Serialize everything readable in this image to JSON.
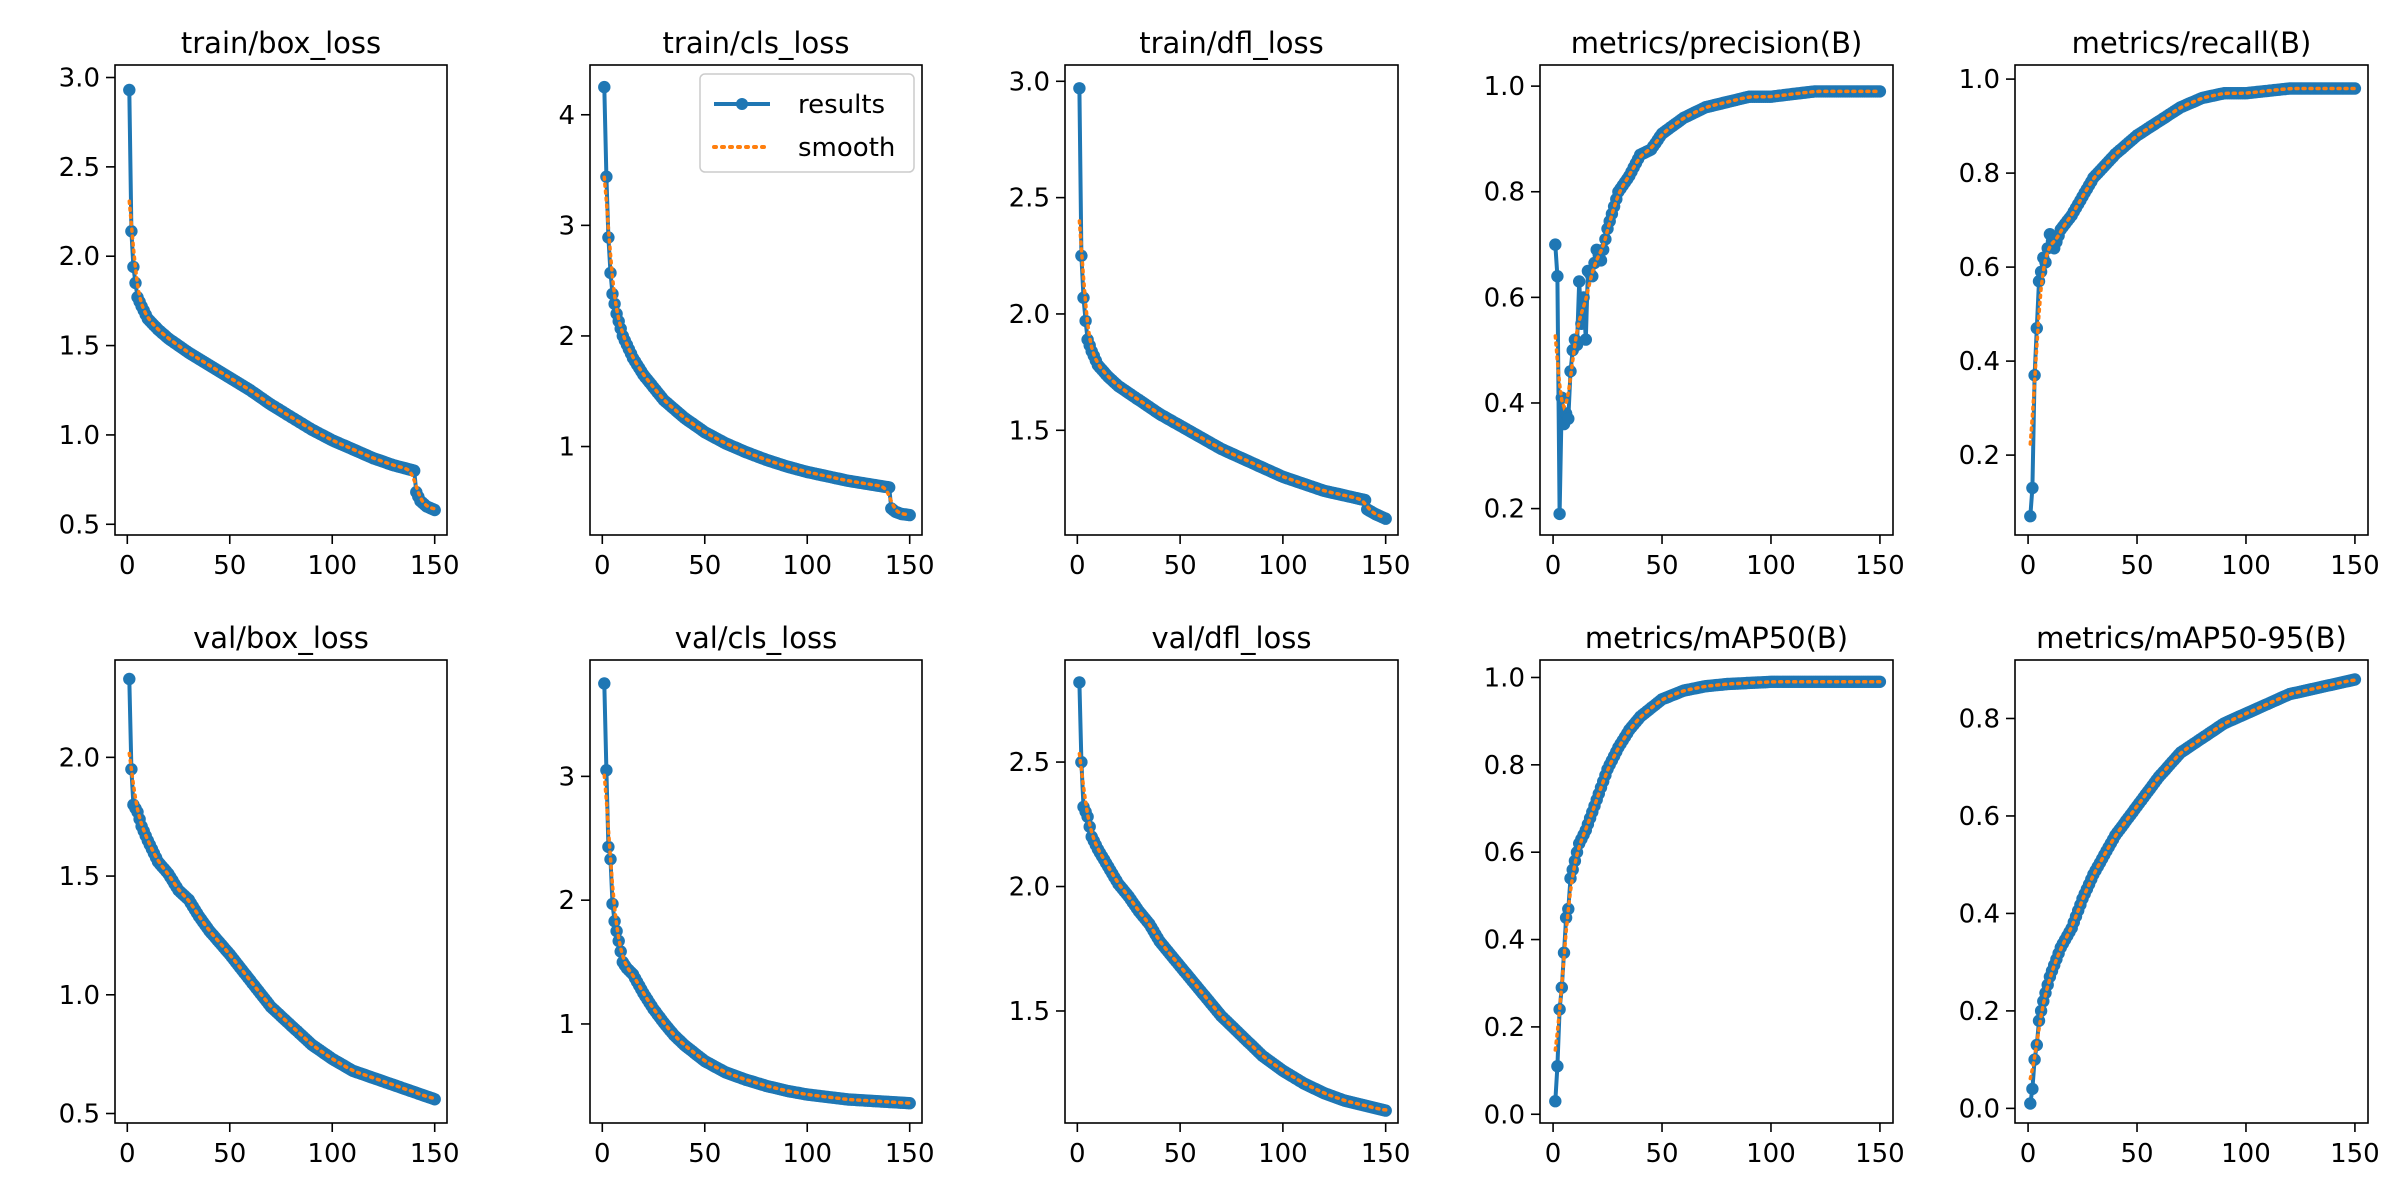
{
  "figure": {
    "colors": {
      "results": "#1f77b4",
      "smooth": "#ff7f0e",
      "axis": "#000000",
      "background": "#ffffff"
    },
    "legend": {
      "placement": "top-right",
      "panel": "train/cls_loss",
      "entries": [
        "results",
        "smooth"
      ]
    }
  },
  "chart_data": [
    {
      "type": "line",
      "title": "train/box_loss",
      "xlabel": "",
      "ylabel": "",
      "xlim": [
        -6,
        156
      ],
      "ylim": [
        0.44,
        3.07
      ],
      "xticks": [
        0,
        50,
        100,
        150
      ],
      "yticks": [
        0.5,
        1.0,
        1.5,
        2.0,
        2.5,
        3.0
      ],
      "ytick_labels": [
        "0.5",
        "1.0",
        "1.5",
        "2.0",
        "2.5",
        "3.0"
      ],
      "knots": [
        [
          1,
          2.93
        ],
        [
          2,
          2.14
        ],
        [
          3,
          1.94
        ],
        [
          4,
          1.85
        ],
        [
          5,
          1.77
        ],
        [
          7,
          1.72
        ],
        [
          10,
          1.65
        ],
        [
          15,
          1.59
        ],
        [
          20,
          1.54
        ],
        [
          30,
          1.46
        ],
        [
          40,
          1.39
        ],
        [
          50,
          1.32
        ],
        [
          60,
          1.25
        ],
        [
          70,
          1.17
        ],
        [
          80,
          1.1
        ],
        [
          90,
          1.03
        ],
        [
          100,
          0.97
        ],
        [
          110,
          0.92
        ],
        [
          120,
          0.87
        ],
        [
          130,
          0.83
        ],
        [
          140,
          0.8
        ],
        [
          141,
          0.68
        ],
        [
          143,
          0.63
        ],
        [
          146,
          0.6
        ],
        [
          150,
          0.58
        ]
      ],
      "series": [
        {
          "name": "results",
          "role": "results"
        },
        {
          "name": "smooth",
          "role": "smooth"
        }
      ]
    },
    {
      "type": "line",
      "title": "train/cls_loss",
      "xlabel": "",
      "ylabel": "",
      "xlim": [
        -6,
        156
      ],
      "ylim": [
        0.2,
        4.45
      ],
      "xticks": [
        0,
        50,
        100,
        150
      ],
      "yticks": [
        1,
        2,
        3,
        4
      ],
      "ytick_labels": [
        "1",
        "2",
        "3",
        "4"
      ],
      "knots": [
        [
          1,
          4.25
        ],
        [
          2,
          3.44
        ],
        [
          3,
          2.89
        ],
        [
          4,
          2.57
        ],
        [
          5,
          2.38
        ],
        [
          7,
          2.2
        ],
        [
          10,
          2.0
        ],
        [
          15,
          1.8
        ],
        [
          20,
          1.65
        ],
        [
          30,
          1.42
        ],
        [
          40,
          1.26
        ],
        [
          50,
          1.13
        ],
        [
          60,
          1.03
        ],
        [
          70,
          0.95
        ],
        [
          80,
          0.88
        ],
        [
          90,
          0.82
        ],
        [
          100,
          0.77
        ],
        [
          110,
          0.73
        ],
        [
          120,
          0.69
        ],
        [
          130,
          0.66
        ],
        [
          140,
          0.63
        ],
        [
          141,
          0.44
        ],
        [
          143,
          0.41
        ],
        [
          146,
          0.39
        ],
        [
          150,
          0.38
        ]
      ],
      "series": [
        {
          "name": "results",
          "role": "results"
        },
        {
          "name": "smooth",
          "role": "smooth"
        }
      ]
    },
    {
      "type": "line",
      "title": "train/dfl_loss",
      "xlabel": "",
      "ylabel": "",
      "xlim": [
        -6,
        156
      ],
      "ylim": [
        1.05,
        3.07
      ],
      "xticks": [
        0,
        50,
        100,
        150
      ],
      "yticks": [
        1.5,
        2.0,
        2.5,
        3.0
      ],
      "ytick_labels": [
        "1.5",
        "2.0",
        "2.5",
        "3.0"
      ],
      "knots": [
        [
          1,
          2.97
        ],
        [
          2,
          2.25
        ],
        [
          3,
          2.07
        ],
        [
          4,
          1.97
        ],
        [
          5,
          1.89
        ],
        [
          7,
          1.84
        ],
        [
          10,
          1.78
        ],
        [
          15,
          1.73
        ],
        [
          20,
          1.69
        ],
        [
          30,
          1.63
        ],
        [
          40,
          1.57
        ],
        [
          50,
          1.52
        ],
        [
          60,
          1.47
        ],
        [
          70,
          1.42
        ],
        [
          80,
          1.38
        ],
        [
          90,
          1.34
        ],
        [
          100,
          1.3
        ],
        [
          110,
          1.27
        ],
        [
          120,
          1.24
        ],
        [
          130,
          1.22
        ],
        [
          140,
          1.2
        ],
        [
          141,
          1.16
        ],
        [
          145,
          1.14
        ],
        [
          150,
          1.12
        ]
      ],
      "series": [
        {
          "name": "results",
          "role": "results"
        },
        {
          "name": "smooth",
          "role": "smooth"
        }
      ]
    },
    {
      "type": "line",
      "title": "metrics/precision(B)",
      "xlabel": "",
      "ylabel": "",
      "xlim": [
        -6,
        156
      ],
      "ylim": [
        0.15,
        1.04
      ],
      "xticks": [
        0,
        50,
        100,
        150
      ],
      "yticks": [
        0.2,
        0.4,
        0.6,
        0.8,
        1.0
      ],
      "ytick_labels": [
        "0.2",
        "0.4",
        "0.6",
        "0.8",
        "1.0"
      ],
      "knots": [
        [
          1,
          0.7
        ],
        [
          2,
          0.64
        ],
        [
          3,
          0.19
        ],
        [
          4,
          0.41
        ],
        [
          5,
          0.36
        ],
        [
          6,
          0.38
        ],
        [
          7,
          0.37
        ],
        [
          8,
          0.46
        ],
        [
          9,
          0.5
        ],
        [
          10,
          0.52
        ],
        [
          11,
          0.51
        ],
        [
          12,
          0.63
        ],
        [
          13,
          0.55
        ],
        [
          14,
          0.6
        ],
        [
          15,
          0.52
        ],
        [
          16,
          0.65
        ],
        [
          18,
          0.64
        ],
        [
          20,
          0.69
        ],
        [
          22,
          0.67
        ],
        [
          25,
          0.73
        ],
        [
          30,
          0.8
        ],
        [
          35,
          0.83
        ],
        [
          40,
          0.87
        ],
        [
          45,
          0.88
        ],
        [
          50,
          0.91
        ],
        [
          60,
          0.94
        ],
        [
          70,
          0.96
        ],
        [
          80,
          0.97
        ],
        [
          90,
          0.98
        ],
        [
          100,
          0.98
        ],
        [
          120,
          0.99
        ],
        [
          150,
          0.99
        ]
      ],
      "series": [
        {
          "name": "results",
          "role": "results"
        },
        {
          "name": "smooth",
          "role": "smooth"
        }
      ]
    },
    {
      "type": "line",
      "title": "metrics/recall(B)",
      "xlabel": "",
      "ylabel": "",
      "xlim": [
        -6,
        156
      ],
      "ylim": [
        0.03,
        1.03
      ],
      "xticks": [
        0,
        50,
        100,
        150
      ],
      "yticks": [
        0.2,
        0.4,
        0.6,
        0.8,
        1.0
      ],
      "ytick_labels": [
        "0.2",
        "0.4",
        "0.6",
        "0.8",
        "1.0"
      ],
      "knots": [
        [
          1,
          0.07
        ],
        [
          2,
          0.13
        ],
        [
          3,
          0.37
        ],
        [
          4,
          0.47
        ],
        [
          5,
          0.57
        ],
        [
          6,
          0.59
        ],
        [
          7,
          0.62
        ],
        [
          8,
          0.61
        ],
        [
          10,
          0.67
        ],
        [
          12,
          0.64
        ],
        [
          15,
          0.68
        ],
        [
          20,
          0.71
        ],
        [
          25,
          0.75
        ],
        [
          30,
          0.79
        ],
        [
          40,
          0.84
        ],
        [
          50,
          0.88
        ],
        [
          60,
          0.91
        ],
        [
          70,
          0.94
        ],
        [
          80,
          0.96
        ],
        [
          90,
          0.97
        ],
        [
          100,
          0.97
        ],
        [
          120,
          0.98
        ],
        [
          150,
          0.98
        ]
      ],
      "series": [
        {
          "name": "results",
          "role": "results"
        },
        {
          "name": "smooth",
          "role": "smooth"
        }
      ]
    },
    {
      "type": "line",
      "title": "val/box_loss",
      "xlabel": "",
      "ylabel": "",
      "xlim": [
        -6,
        156
      ],
      "ylim": [
        0.46,
        2.41
      ],
      "xticks": [
        0,
        50,
        100,
        150
      ],
      "yticks": [
        0.5,
        1.0,
        1.5,
        2.0
      ],
      "ytick_labels": [
        "0.5",
        "1.0",
        "1.5",
        "2.0"
      ],
      "knots": [
        [
          1,
          2.33
        ],
        [
          2,
          1.95
        ],
        [
          3,
          1.8
        ],
        [
          5,
          1.77
        ],
        [
          7,
          1.71
        ],
        [
          10,
          1.65
        ],
        [
          15,
          1.56
        ],
        [
          20,
          1.51
        ],
        [
          25,
          1.44
        ],
        [
          30,
          1.4
        ],
        [
          35,
          1.33
        ],
        [
          40,
          1.27
        ],
        [
          50,
          1.17
        ],
        [
          60,
          1.06
        ],
        [
          70,
          0.95
        ],
        [
          80,
          0.87
        ],
        [
          90,
          0.79
        ],
        [
          100,
          0.73
        ],
        [
          110,
          0.68
        ],
        [
          120,
          0.65
        ],
        [
          130,
          0.62
        ],
        [
          140,
          0.59
        ],
        [
          150,
          0.56
        ]
      ],
      "series": [
        {
          "name": "results",
          "role": "results"
        },
        {
          "name": "smooth",
          "role": "smooth"
        }
      ]
    },
    {
      "type": "line",
      "title": "val/cls_loss",
      "xlabel": "",
      "ylabel": "",
      "xlim": [
        -6,
        156
      ],
      "ylim": [
        0.2,
        3.94
      ],
      "xticks": [
        0,
        50,
        100,
        150
      ],
      "yticks": [
        1,
        2,
        3
      ],
      "ytick_labels": [
        "1",
        "2",
        "3"
      ],
      "knots": [
        [
          1,
          3.75
        ],
        [
          2,
          3.05
        ],
        [
          3,
          2.43
        ],
        [
          4,
          2.33
        ],
        [
          5,
          1.97
        ],
        [
          6,
          1.83
        ],
        [
          8,
          1.67
        ],
        [
          10,
          1.5
        ],
        [
          12,
          1.45
        ],
        [
          15,
          1.4
        ],
        [
          20,
          1.25
        ],
        [
          25,
          1.12
        ],
        [
          30,
          1.01
        ],
        [
          35,
          0.91
        ],
        [
          40,
          0.83
        ],
        [
          50,
          0.7
        ],
        [
          60,
          0.61
        ],
        [
          70,
          0.55
        ],
        [
          80,
          0.5
        ],
        [
          90,
          0.46
        ],
        [
          100,
          0.43
        ],
        [
          120,
          0.39
        ],
        [
          140,
          0.37
        ],
        [
          150,
          0.36
        ]
      ],
      "series": [
        {
          "name": "results",
          "role": "results"
        },
        {
          "name": "smooth",
          "role": "smooth"
        }
      ]
    },
    {
      "type": "line",
      "title": "val/dfl_loss",
      "xlabel": "",
      "ylabel": "",
      "xlim": [
        -6,
        156
      ],
      "ylim": [
        1.05,
        2.91
      ],
      "xticks": [
        0,
        50,
        100,
        150
      ],
      "yticks": [
        1.5,
        2.0,
        2.5
      ],
      "ytick_labels": [
        "1.5",
        "2.0",
        "2.5"
      ],
      "knots": [
        [
          1,
          2.82
        ],
        [
          2,
          2.5
        ],
        [
          3,
          2.32
        ],
        [
          5,
          2.28
        ],
        [
          7,
          2.2
        ],
        [
          10,
          2.15
        ],
        [
          15,
          2.08
        ],
        [
          20,
          2.01
        ],
        [
          25,
          1.96
        ],
        [
          30,
          1.9
        ],
        [
          35,
          1.85
        ],
        [
          40,
          1.78
        ],
        [
          50,
          1.68
        ],
        [
          60,
          1.58
        ],
        [
          70,
          1.48
        ],
        [
          80,
          1.4
        ],
        [
          90,
          1.32
        ],
        [
          100,
          1.26
        ],
        [
          110,
          1.21
        ],
        [
          120,
          1.17
        ],
        [
          130,
          1.14
        ],
        [
          140,
          1.12
        ],
        [
          150,
          1.1
        ]
      ],
      "series": [
        {
          "name": "results",
          "role": "results"
        },
        {
          "name": "smooth",
          "role": "smooth"
        }
      ]
    },
    {
      "type": "line",
      "title": "metrics/mAP50(B)",
      "xlabel": "",
      "ylabel": "",
      "xlim": [
        -6,
        156
      ],
      "ylim": [
        -0.02,
        1.04
      ],
      "xticks": [
        0,
        50,
        100,
        150
      ],
      "yticks": [
        0.0,
        0.2,
        0.4,
        0.6,
        0.8,
        1.0
      ],
      "ytick_labels": [
        "0.0",
        "0.2",
        "0.4",
        "0.6",
        "0.8",
        "1.0"
      ],
      "knots": [
        [
          1,
          0.03
        ],
        [
          2,
          0.11
        ],
        [
          3,
          0.24
        ],
        [
          4,
          0.29
        ],
        [
          5,
          0.37
        ],
        [
          6,
          0.45
        ],
        [
          7,
          0.47
        ],
        [
          8,
          0.54
        ],
        [
          10,
          0.58
        ],
        [
          12,
          0.62
        ],
        [
          15,
          0.65
        ],
        [
          20,
          0.72
        ],
        [
          25,
          0.79
        ],
        [
          30,
          0.84
        ],
        [
          35,
          0.88
        ],
        [
          40,
          0.91
        ],
        [
          50,
          0.95
        ],
        [
          60,
          0.97
        ],
        [
          70,
          0.98
        ],
        [
          80,
          0.985
        ],
        [
          100,
          0.99
        ],
        [
          150,
          0.99
        ]
      ],
      "series": [
        {
          "name": "results",
          "role": "results"
        },
        {
          "name": "smooth",
          "role": "smooth"
        }
      ]
    },
    {
      "type": "line",
      "title": "metrics/mAP50-95(B)",
      "xlabel": "",
      "ylabel": "",
      "xlim": [
        -6,
        156
      ],
      "ylim": [
        -0.03,
        0.92
      ],
      "xticks": [
        0,
        50,
        100,
        150
      ],
      "yticks": [
        0.0,
        0.2,
        0.4,
        0.6,
        0.8
      ],
      "ytick_labels": [
        "0.0",
        "0.2",
        "0.4",
        "0.6",
        "0.8"
      ],
      "knots": [
        [
          1,
          0.01
        ],
        [
          2,
          0.04
        ],
        [
          3,
          0.1
        ],
        [
          4,
          0.13
        ],
        [
          5,
          0.18
        ],
        [
          7,
          0.22
        ],
        [
          10,
          0.27
        ],
        [
          15,
          0.33
        ],
        [
          20,
          0.37
        ],
        [
          25,
          0.43
        ],
        [
          30,
          0.48
        ],
        [
          40,
          0.56
        ],
        [
          50,
          0.62
        ],
        [
          60,
          0.68
        ],
        [
          70,
          0.73
        ],
        [
          80,
          0.76
        ],
        [
          90,
          0.79
        ],
        [
          100,
          0.81
        ],
        [
          110,
          0.83
        ],
        [
          120,
          0.85
        ],
        [
          130,
          0.86
        ],
        [
          140,
          0.87
        ],
        [
          150,
          0.88
        ]
      ],
      "series": [
        {
          "name": "results",
          "role": "results"
        },
        {
          "name": "smooth",
          "role": "smooth"
        }
      ]
    }
  ]
}
